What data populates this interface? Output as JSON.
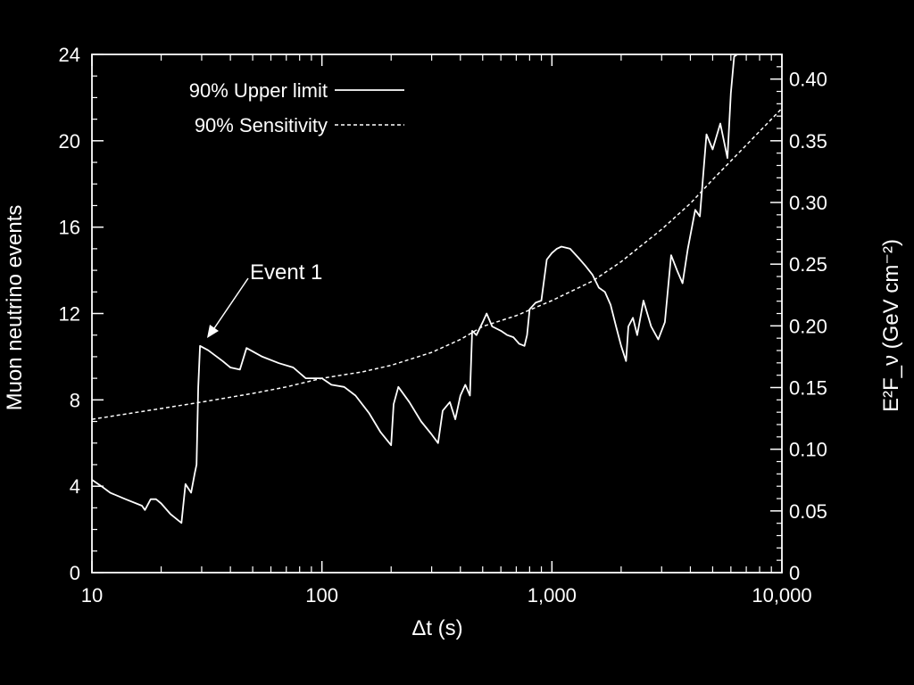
{
  "chart_data": {
    "type": "line",
    "title": "",
    "xlabel": "Δt (s)",
    "ylabel": "Muon neutrino events",
    "y2label": "E²F_ν (GeV cm⁻²)",
    "xscale": "log",
    "xlim": [
      10,
      10000
    ],
    "ylim": [
      0,
      24
    ],
    "y2lim": [
      0,
      0.42
    ],
    "x_ticks": [
      10,
      100,
      1000,
      10000
    ],
    "x_tick_labels": [
      "10",
      "100",
      "1,000",
      "10,000"
    ],
    "y_ticks": [
      0,
      4,
      8,
      12,
      16,
      20,
      24
    ],
    "y_tick_labels": [
      "0",
      "4",
      "8",
      "12",
      "16",
      "20",
      "24"
    ],
    "y2_ticks": [
      0,
      0.05,
      0.1,
      0.15,
      0.2,
      0.25,
      0.3,
      0.35,
      0.4
    ],
    "y2_tick_labels": [
      "0",
      "0.05",
      "0.10",
      "0.15",
      "0.20",
      "0.25",
      "0.30",
      "0.35",
      "0.40"
    ],
    "grid": false,
    "legend_position": "top-left",
    "series": [
      {
        "name": "90% Upper limit",
        "style": "solid",
        "points": [
          [
            10,
            4.3
          ],
          [
            11,
            4.0
          ],
          [
            12,
            3.7
          ],
          [
            14,
            3.4
          ],
          [
            16.5,
            3.1
          ],
          [
            17,
            2.9
          ],
          [
            18,
            3.4
          ],
          [
            19,
            3.4
          ],
          [
            20,
            3.2
          ],
          [
            22,
            2.7
          ],
          [
            24.5,
            2.3
          ],
          [
            25.5,
            4.1
          ],
          [
            27,
            3.7
          ],
          [
            28,
            4.6
          ],
          [
            28.5,
            5.0
          ],
          [
            29,
            8.6
          ],
          [
            29.5,
            10.5
          ],
          [
            32,
            10.3
          ],
          [
            37,
            9.8
          ],
          [
            40,
            9.5
          ],
          [
            44,
            9.4
          ],
          [
            47,
            10.4
          ],
          [
            55,
            10.0
          ],
          [
            65,
            9.7
          ],
          [
            75,
            9.5
          ],
          [
            85,
            9.0
          ],
          [
            90,
            9.0
          ],
          [
            100,
            9.0
          ],
          [
            110,
            8.7
          ],
          [
            125,
            8.6
          ],
          [
            140,
            8.2
          ],
          [
            160,
            7.4
          ],
          [
            180,
            6.5
          ],
          [
            200,
            5.9
          ],
          [
            205,
            7.8
          ],
          [
            215,
            8.6
          ],
          [
            240,
            7.9
          ],
          [
            270,
            7.0
          ],
          [
            300,
            6.4
          ],
          [
            320,
            6.0
          ],
          [
            335,
            7.5
          ],
          [
            360,
            7.9
          ],
          [
            380,
            7.1
          ],
          [
            400,
            8.2
          ],
          [
            420,
            8.7
          ],
          [
            440,
            8.2
          ],
          [
            450,
            11.2
          ],
          [
            470,
            11.0
          ],
          [
            500,
            11.6
          ],
          [
            520,
            12.0
          ],
          [
            550,
            11.4
          ],
          [
            600,
            11.2
          ],
          [
            640,
            11.0
          ],
          [
            680,
            10.9
          ],
          [
            720,
            10.6
          ],
          [
            760,
            10.5
          ],
          [
            780,
            11.0
          ],
          [
            800,
            12.2
          ],
          [
            850,
            12.5
          ],
          [
            900,
            12.6
          ],
          [
            950,
            14.5
          ],
          [
            1000,
            14.8
          ],
          [
            1050,
            15.0
          ],
          [
            1100,
            15.1
          ],
          [
            1200,
            15.0
          ],
          [
            1300,
            14.6
          ],
          [
            1400,
            14.2
          ],
          [
            1500,
            13.8
          ],
          [
            1600,
            13.2
          ],
          [
            1700,
            13.0
          ],
          [
            1800,
            12.4
          ],
          [
            1900,
            11.4
          ],
          [
            2000,
            10.5
          ],
          [
            2100,
            9.8
          ],
          [
            2150,
            11.4
          ],
          [
            2250,
            11.8
          ],
          [
            2350,
            11.0
          ],
          [
            2500,
            12.6
          ],
          [
            2700,
            11.4
          ],
          [
            2900,
            10.8
          ],
          [
            3100,
            11.6
          ],
          [
            3300,
            14.7
          ],
          [
            3500,
            14.0
          ],
          [
            3700,
            13.4
          ],
          [
            3900,
            15.0
          ],
          [
            4200,
            16.8
          ],
          [
            4400,
            16.5
          ],
          [
            4700,
            20.3
          ],
          [
            5000,
            19.6
          ],
          [
            5400,
            20.8
          ],
          [
            5800,
            19.2
          ],
          [
            6000,
            22.2
          ],
          [
            6200,
            23.9
          ],
          [
            6400,
            24.0
          ]
        ]
      },
      {
        "name": "90% Sensitivity",
        "style": "dashed",
        "points": [
          [
            10,
            7.1
          ],
          [
            20,
            7.6
          ],
          [
            30,
            7.9
          ],
          [
            50,
            8.3
          ],
          [
            70,
            8.6
          ],
          [
            100,
            9.0
          ],
          [
            150,
            9.3
          ],
          [
            200,
            9.6
          ],
          [
            300,
            10.2
          ],
          [
            400,
            10.8
          ],
          [
            500,
            11.4
          ],
          [
            700,
            11.9
          ],
          [
            1000,
            12.6
          ],
          [
            1500,
            13.5
          ],
          [
            2000,
            14.4
          ],
          [
            3000,
            15.9
          ],
          [
            4000,
            17.1
          ],
          [
            5000,
            18.2
          ],
          [
            7000,
            19.8
          ],
          [
            10000,
            21.5
          ]
        ]
      }
    ],
    "annotations": [
      {
        "text": "Event 1",
        "x": 30,
        "y": 10.5
      }
    ]
  }
}
